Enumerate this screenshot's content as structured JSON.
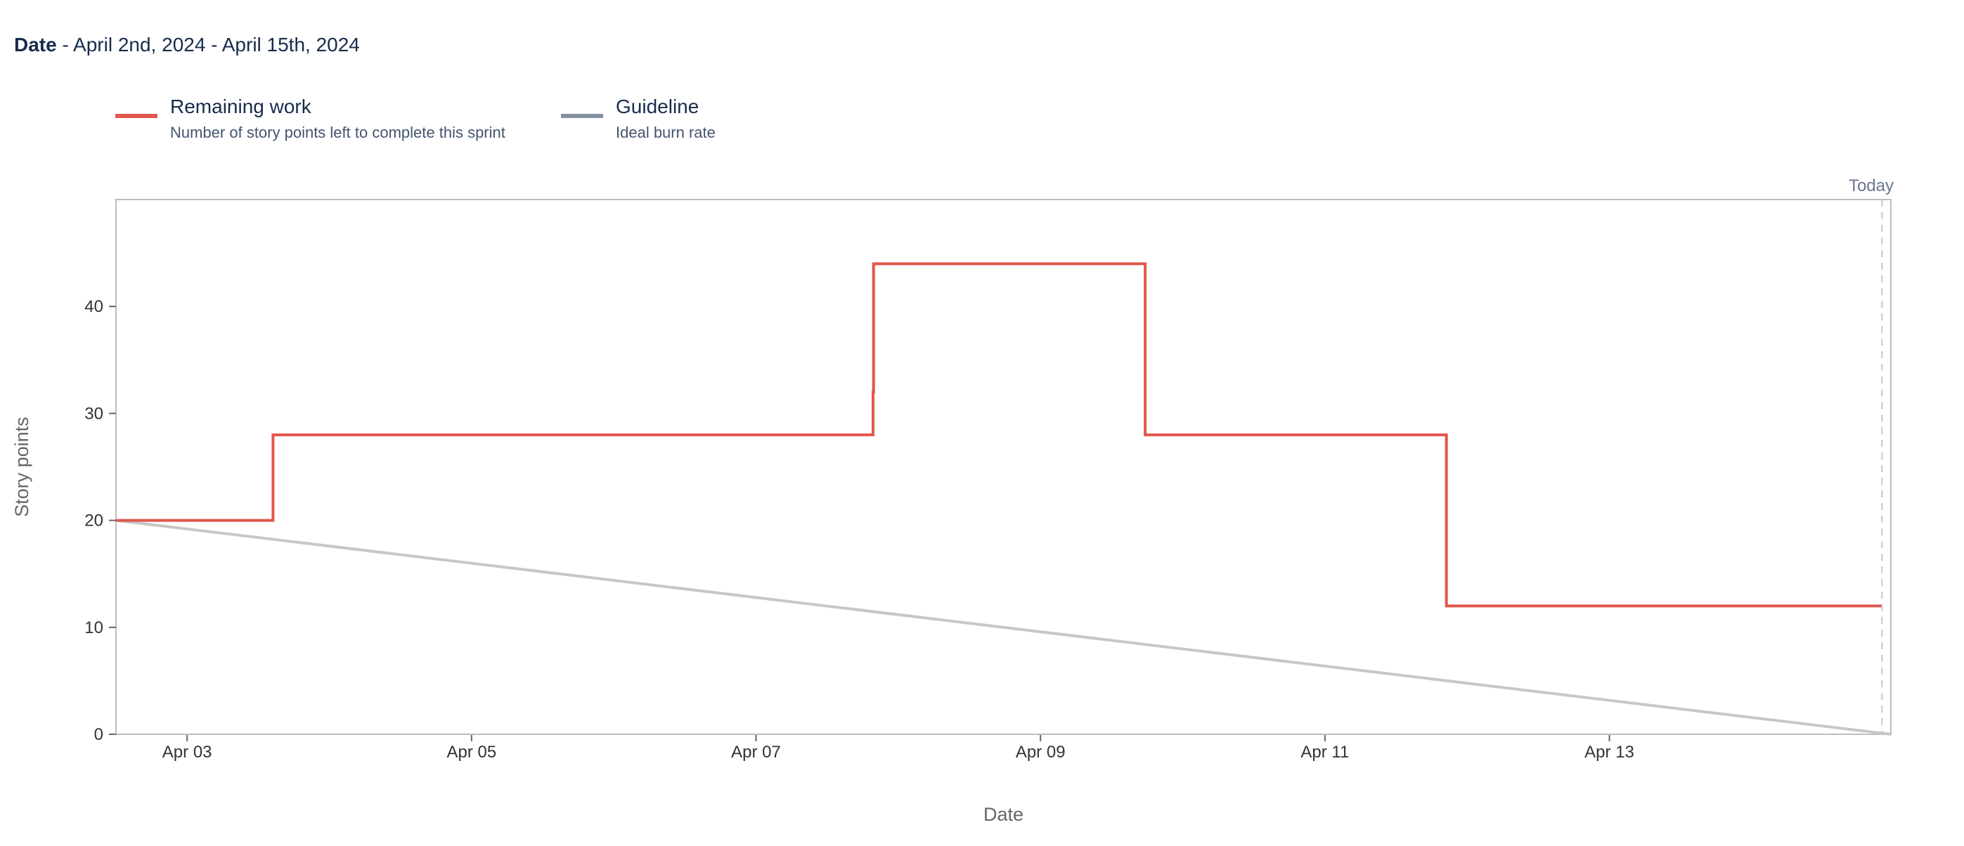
{
  "header": {
    "label": "Date",
    "separator": " - ",
    "range": "April 2nd, 2024 - April 15th, 2024"
  },
  "legend": [
    {
      "title": "Remaining work",
      "description": "Number of story points left to complete this sprint",
      "color": "#e2574c"
    },
    {
      "title": "Guideline",
      "description": "Ideal burn rate",
      "color": "#8590a2"
    }
  ],
  "colors": {
    "remaining": "#e2574c",
    "guideline": "#c7c7c7",
    "axis": "#bdbdbd",
    "today_marker": "#c1c7d0"
  },
  "chart_data": {
    "type": "line",
    "title": "",
    "xlabel": "Date",
    "ylabel": "Story points",
    "xlim": [
      "2024-04-02T12:00",
      "2024-04-14T23:30"
    ],
    "ylim": [
      0,
      50
    ],
    "yticks": [
      0,
      10,
      20,
      30,
      40
    ],
    "xticks": [
      {
        "date": "2024-04-03",
        "label": "Apr 03"
      },
      {
        "date": "2024-04-05",
        "label": "Apr 05"
      },
      {
        "date": "2024-04-07",
        "label": "Apr 07"
      },
      {
        "date": "2024-04-09",
        "label": "Apr 09"
      },
      {
        "date": "2024-04-11",
        "label": "Apr 11"
      },
      {
        "date": "2024-04-13",
        "label": "Apr 13"
      }
    ],
    "today": {
      "date": "2024-04-14T22:00",
      "label": "Today"
    },
    "series": [
      {
        "name": "Remaining work",
        "step": true,
        "points": [
          {
            "x": "2024-04-02T12:00",
            "y": 20
          },
          {
            "x": "2024-04-03T14:30",
            "y": 28
          },
          {
            "x": "2024-04-07T19:45",
            "y": 32
          },
          {
            "x": "2024-04-07T19:50",
            "y": 44
          },
          {
            "x": "2024-04-09T17:40",
            "y": 28
          },
          {
            "x": "2024-04-11T20:30",
            "y": 12
          },
          {
            "x": "2024-04-14T22:00",
            "y": 12
          }
        ]
      },
      {
        "name": "Guideline",
        "step": false,
        "points": [
          {
            "x": "2024-04-02T12:00",
            "y": 20
          },
          {
            "x": "2024-04-14T23:30",
            "y": 0
          }
        ]
      }
    ]
  }
}
